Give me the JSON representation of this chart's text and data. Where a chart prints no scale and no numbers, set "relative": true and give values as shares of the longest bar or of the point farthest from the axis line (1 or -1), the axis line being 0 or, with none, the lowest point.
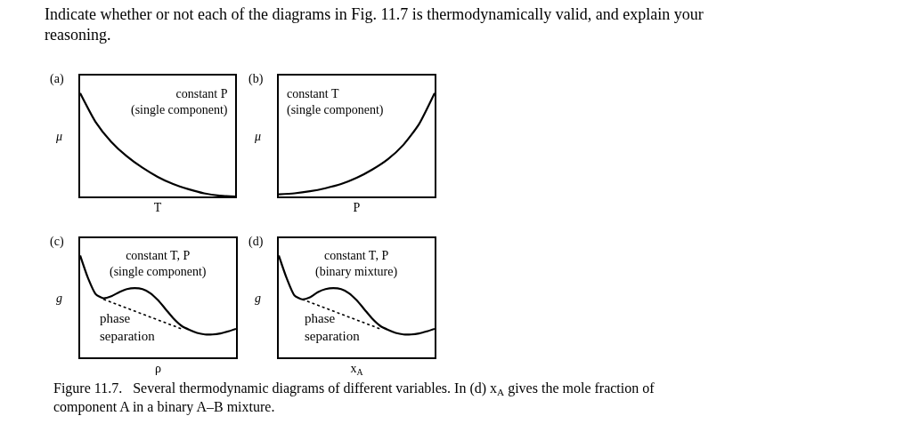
{
  "chart_data": [
    {
      "type": "line",
      "title": "(a)",
      "xlabel": "T",
      "ylabel": "μ",
      "relative": true,
      "line_style": "solid",
      "marker": "none",
      "tick_labels": false,
      "categories": [
        null,
        null,
        null,
        null,
        null,
        null,
        null,
        null,
        null,
        null,
        null
      ],
      "series": [
        {
          "color": "#000000",
          "values": [
            1.0,
            0.72,
            0.53,
            0.39,
            0.28,
            0.19,
            0.12,
            0.07,
            0.03,
            0.008,
            0.0
          ]
        }
      ],
      "annotations": [
        "Indicate whether or not each of the diagrams in Fig. 11.7 is thermodynamically valid, and explain your\nreasoning.",
        "constant P\n(single component)"
      ]
    },
    {
      "type": "line",
      "title": "(b)",
      "xlabel": "P",
      "ylabel": "μ",
      "relative": true,
      "line_style": "solid",
      "marker": "none",
      "tick_labels": false,
      "categories": [
        null,
        null,
        null,
        null,
        null,
        null,
        null,
        null,
        null,
        null,
        null
      ],
      "series": [
        {
          "color": "#000000",
          "values": [
            0.02,
            0.03,
            0.05,
            0.08,
            0.12,
            0.18,
            0.26,
            0.36,
            0.5,
            0.7,
            1.0
          ]
        }
      ],
      "annotations": [
        "constant T\n(single component)"
      ]
    },
    {
      "type": "line",
      "title": "(c)",
      "xlabel": "ρ",
      "ylabel": "g",
      "relative": true,
      "marker": "none",
      "tick_labels": false,
      "categories": [
        null,
        null,
        null,
        null,
        null,
        null,
        null,
        null,
        null,
        null,
        null,
        null,
        null,
        null,
        null,
        null,
        null,
        null,
        null,
        null,
        null
      ],
      "series": [
        {
          "color": "#000000",
          "line_style": "solid",
          "values": [
            1.0,
            0.78,
            0.62,
            0.58,
            0.6,
            0.64,
            0.67,
            0.68,
            0.67,
            0.63,
            0.56,
            0.47,
            0.38,
            0.31,
            0.27,
            0.24,
            0.225,
            0.225,
            0.235,
            0.255,
            0.28
          ]
        },
        {
          "color": "#000000",
          "line_style": "dotted",
          "values": [
            null,
            null,
            null,
            0.57,
            null,
            null,
            null,
            null,
            null,
            null,
            null,
            null,
            null,
            0.28,
            null,
            null,
            null,
            null,
            null,
            null,
            null
          ]
        }
      ],
      "annotations": [
        "constant T, P\n(single component)",
        "phase\nseparation"
      ]
    },
    {
      "type": "line",
      "title": "(d)",
      "xlabel": "x$_{A}$",
      "ylabel": "g",
      "relative": true,
      "marker": "none",
      "tick_labels": false,
      "categories": [
        null,
        null,
        null,
        null,
        null,
        null,
        null,
        null,
        null,
        null,
        null,
        null,
        null,
        null,
        null,
        null,
        null,
        null,
        null,
        null,
        null
      ],
      "series": [
        {
          "color": "#000000",
          "line_style": "solid",
          "values": [
            1.0,
            0.78,
            0.61,
            0.57,
            0.59,
            0.64,
            0.67,
            0.68,
            0.67,
            0.63,
            0.56,
            0.47,
            0.38,
            0.31,
            0.27,
            0.24,
            0.225,
            0.225,
            0.235,
            0.255,
            0.28
          ]
        },
        {
          "color": "#000000",
          "line_style": "dotted",
          "values": [
            null,
            null,
            null,
            0.57,
            null,
            null,
            null,
            null,
            null,
            null,
            null,
            null,
            null,
            0.28,
            null,
            null,
            null,
            null,
            null,
            null,
            null
          ]
        }
      ],
      "annotations": [
        "constant T, P\n(binary mixture)",
        "phase\nseparation",
        "Figure 11.7.   Several thermodynamic diagrams of different variables. In (d) x$_{A}$ gives the mole fraction of\ncomponent A in a binary A–B mixture."
      ]
    }
  ]
}
